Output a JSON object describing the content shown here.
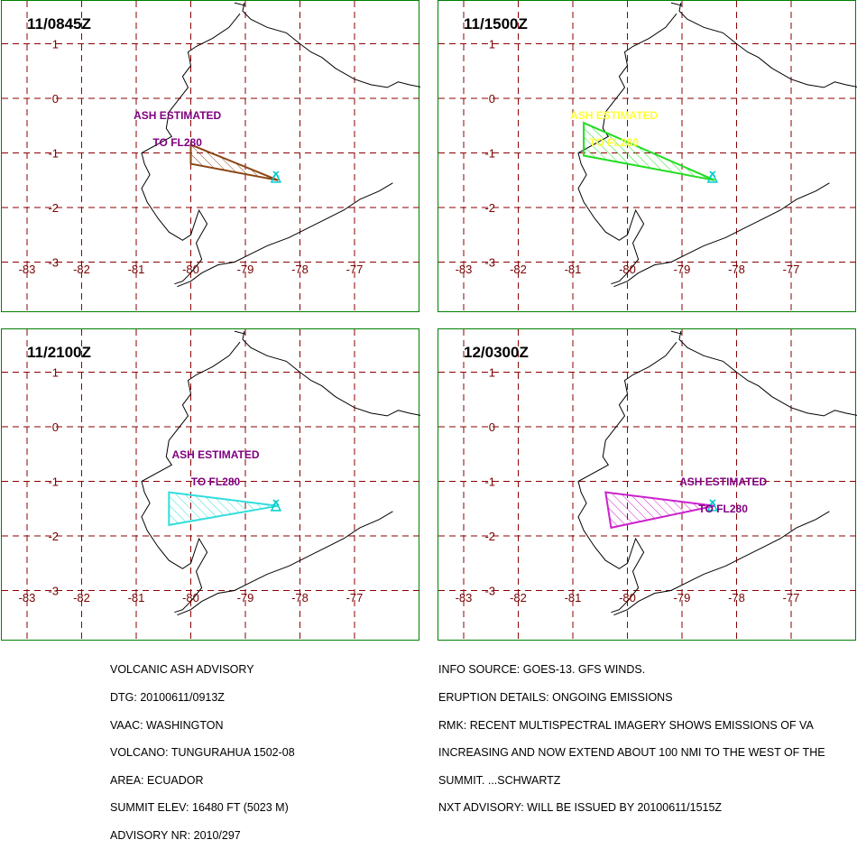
{
  "colors": {
    "frame": "#008000",
    "grid": "#8b0000",
    "tick_label": "#7a0000",
    "coastline": "#000000"
  },
  "map": {
    "lon_ticks": [
      "-83",
      "-82",
      "-81",
      "-80",
      "-79",
      "-78",
      "-77"
    ],
    "lat_ticks": [
      "1",
      "0",
      "-1",
      "-2",
      "-3"
    ],
    "volcano": {
      "name": "TUNGURAHUA",
      "lon": -78.44,
      "lat": -1.47
    }
  },
  "panels": [
    {
      "time": "11/0845Z",
      "label_line1": "ASH ESTIMATED",
      "label_line2": "TO FL280",
      "label_color": "#800080",
      "ash_color": "#8b4513",
      "label_pos": {
        "lon": -80.8,
        "lat": 0.1
      },
      "polygon": [
        [
          -80.0,
          -0.85
        ],
        [
          -78.4,
          -1.5
        ],
        [
          -80.0,
          -1.2
        ]
      ]
    },
    {
      "time": "11/1500Z",
      "label_line1": "ASH ESTIMATED",
      "label_line2": "TO FL280",
      "label_color": "#ffff33",
      "ash_color": "#22dd22",
      "label_pos": {
        "lon": -80.8,
        "lat": 0.1
      },
      "polygon": [
        [
          -80.8,
          -0.45
        ],
        [
          -78.4,
          -1.5
        ],
        [
          -80.8,
          -1.05
        ]
      ]
    },
    {
      "time": "11/2100Z",
      "label_line1": "ASH ESTIMATED",
      "label_line2": "TO FL280",
      "label_color": "#800080",
      "ash_color": "#33dddd",
      "label_pos": {
        "lon": -80.1,
        "lat": -0.1
      },
      "polygon": [
        [
          -80.4,
          -1.2
        ],
        [
          -78.4,
          -1.45
        ],
        [
          -80.4,
          -1.8
        ]
      ]
    },
    {
      "time": "12/0300Z",
      "label_line1": "ASH ESTIMATED",
      "label_line2": "TO FL280",
      "label_color": "#800080",
      "ash_color": "#cc22cc",
      "label_pos": {
        "lon": -78.8,
        "lat": -0.6
      },
      "polygon": [
        [
          -80.4,
          -1.2
        ],
        [
          -78.4,
          -1.45
        ],
        [
          -80.3,
          -1.85
        ]
      ]
    }
  ],
  "advisory_left": [
    "VOLCANIC ASH ADVISORY",
    "DTG: 20100611/0913Z",
    "VAAC: WASHINGTON",
    "VOLCANO: TUNGURAHUA 1502-08",
    "AREA: ECUADOR",
    "SUMMIT ELEV: 16480 FT (5023 M)",
    "ADVISORY NR: 2010/297"
  ],
  "advisory_right": [
    "INFO SOURCE: GOES-13. GFS WINDS.",
    "ERUPTION DETAILS: ONGOING EMISSIONS",
    "RMK: RECENT MULTISPECTRAL IMAGERY SHOWS EMISSIONS OF VA",
    "INCREASING AND NOW EXTEND ABOUT 100 NMI TO THE WEST OF THE",
    "SUMMIT. ...SCHWARTZ",
    "NXT ADVISORY: WILL BE ISSUED BY 20100611/1515Z"
  ]
}
